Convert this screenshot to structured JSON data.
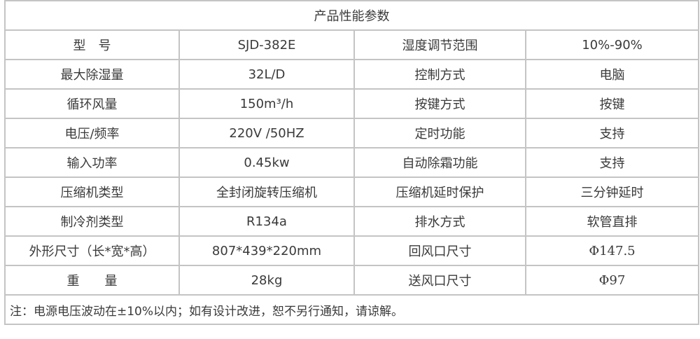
{
  "title": "产品性能参数",
  "rows": [
    [
      "型　号",
      "SJD-382E",
      "湿度调节范围",
      "10%-90%"
    ],
    [
      "最大除湿量",
      "32L/D",
      "控制方式",
      "电脑"
    ],
    [
      "循环风量",
      "150m³/h",
      "按键方式",
      "按键"
    ],
    [
      "电压/频率",
      "220V /50HZ",
      "定时功能",
      "支持"
    ],
    [
      "输入功率",
      "0.45kw",
      "自动除霜功能",
      "支持"
    ],
    [
      "压缩机类型",
      "全封闭旋转压缩机",
      "压缩机延时保护",
      "三分钟延时"
    ],
    [
      "制冷剂类型",
      "R134a",
      "排水方式",
      "软管直排"
    ],
    [
      "外形尺寸（长*宽*高）",
      "807*439*220mm",
      "回风口尺寸",
      "Φ147.5"
    ],
    [
      "重　　量",
      "28kg",
      "送风口尺寸",
      "Φ97"
    ]
  ],
  "note": "注：电源电压波动在±10%以内；如有设计改进，恕不另行通知，请谅解。"
}
